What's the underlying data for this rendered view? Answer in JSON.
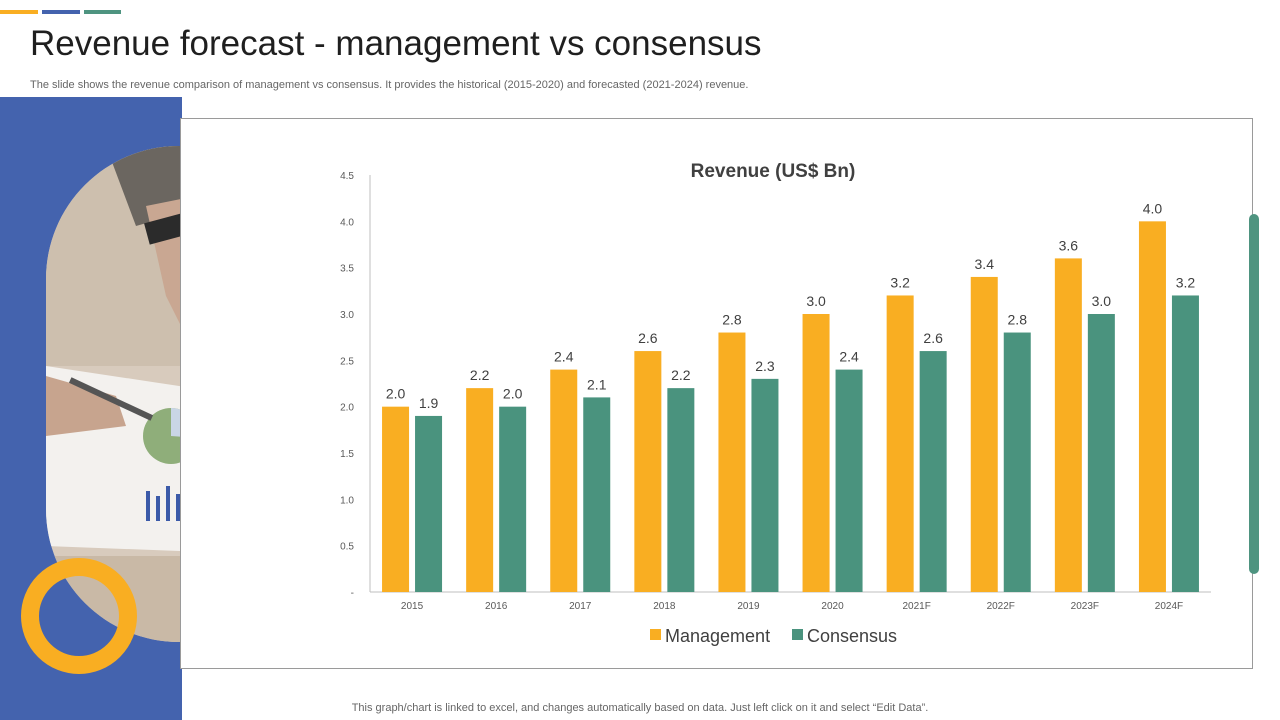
{
  "colors": {
    "accent_yellow": "#F9AE22",
    "accent_blue": "#4463AE",
    "accent_green": "#4E9480",
    "management": "#F9AE22",
    "consensus": "#4A937E",
    "side_panel": "#4463AE"
  },
  "header": {
    "title": "Revenue forecast - management vs consensus",
    "subtitle": "The slide shows the revenue comparison of management vs consensus. It provides the historical (2015-2020) and forecasted (2021-2024) revenue."
  },
  "footer": {
    "note": "This graph/chart is linked to excel,  and changes automatically based on data. Just left click on it and select “Edit Data”."
  },
  "chart_data": {
    "type": "bar",
    "title": "Revenue (US$ Bn)",
    "xlabel": "",
    "ylabel": "",
    "categories": [
      "2015",
      "2016",
      "2017",
      "2018",
      "2019",
      "2020",
      "2021F",
      "2022F",
      "2023F",
      "2024F"
    ],
    "series": [
      {
        "name": "Management",
        "values": [
          2.0,
          2.2,
          2.4,
          2.6,
          2.8,
          3.0,
          3.2,
          3.4,
          3.6,
          4.0
        ]
      },
      {
        "name": "Consensus",
        "values": [
          1.9,
          2.0,
          2.1,
          2.2,
          2.3,
          2.4,
          2.6,
          2.8,
          3.0,
          3.2
        ]
      }
    ],
    "ylim": [
      0,
      4.5
    ],
    "yticks": [
      "-",
      "0.5",
      "1.0",
      "1.5",
      "2.0",
      "2.5",
      "3.0",
      "3.5",
      "4.0",
      "4.5"
    ],
    "legend_position": "bottom",
    "grid": false
  }
}
